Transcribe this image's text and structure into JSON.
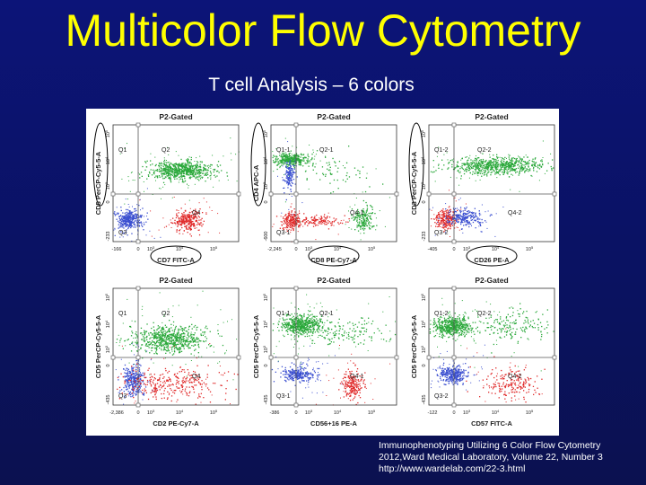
{
  "slide": {
    "title": "Multicolor Flow Cytometry",
    "subtitle": "T cell Analysis – 6 colors"
  },
  "colors": {
    "background": "#0c1478",
    "title": "#ffff00",
    "green_population": "#2aa83a",
    "blue_population": "#3b4fd0",
    "red_population": "#e02a2a",
    "gate_line": "#555555",
    "annotation_circle": "#000000"
  },
  "plots": [
    {
      "gate": "P2-Gated",
      "ylabel": "CD5 PerCP-Cy5-5-A",
      "xlabel": "CD7 FITC-A",
      "yticks": [
        "10^5",
        "10^4",
        "10^3",
        "0",
        "-233"
      ],
      "xticks": [
        "-166",
        "0",
        "10^3",
        "10^4",
        "10^5"
      ],
      "quadrants": [
        "Q1",
        "Q2",
        "Q3",
        "Q4"
      ],
      "ylabel_circled": true,
      "xlabel_circled": true
    },
    {
      "gate": "P2-Gated",
      "ylabel": "CD4 APC-A",
      "xlabel": "CD8 PE-Cy7-A",
      "yticks": [
        "10^5",
        "10^4",
        "10^3",
        "0",
        "-600"
      ],
      "xticks": [
        "-2,245",
        "0",
        "10^3",
        "10^4",
        "10^5"
      ],
      "quadrants": [
        "Q1-1",
        "Q2-1",
        "Q3-1",
        "Q4-1"
      ],
      "ylabel_circled": true,
      "xlabel_circled": true
    },
    {
      "gate": "P2-Gated",
      "ylabel": "CD3 PerCP-Cy5-5-A",
      "xlabel": "CD26 PE-A",
      "yticks": [
        "10^5",
        "10^4",
        "10^3",
        "0",
        "-233"
      ],
      "xticks": [
        "-405",
        "0",
        "10^3",
        "10^4",
        "10^5"
      ],
      "quadrants": [
        "Q1-2",
        "Q2-2",
        "Q3-2",
        "Q4-2"
      ],
      "ylabel_circled": true,
      "xlabel_circled": true
    },
    {
      "gate": "P2-Gated",
      "ylabel": "CD5 PerCP-Cy5-5-A",
      "xlabel": "CD2 PE-Cy7-A",
      "yticks": [
        "10^5",
        "10^4",
        "10^3",
        "0",
        "-435"
      ],
      "xticks": [
        "-2,386",
        "0",
        "10^3",
        "10^4",
        "10^5"
      ],
      "quadrants": [
        "Q1",
        "Q2",
        "Q3",
        "Q4"
      ],
      "ylabel_circled": false,
      "xlabel_circled": false
    },
    {
      "gate": "P2-Gated",
      "ylabel": "CD5 PerCP-Cy5-5-A",
      "xlabel": "CD56+16 PE-A",
      "yticks": [
        "10^5",
        "10^4",
        "10^3",
        "0",
        "-435"
      ],
      "xticks": [
        "-386",
        "0",
        "10^3",
        "10^4",
        "10^5"
      ],
      "quadrants": [
        "Q1-1",
        "Q2-1",
        "Q3-1",
        "Q4-1"
      ],
      "ylabel_circled": false,
      "xlabel_circled": false
    },
    {
      "gate": "P2-Gated",
      "ylabel": "CD5 PerCP-Cy5-5-A",
      "xlabel": "CD57 FITC-A",
      "yticks": [
        "10^5",
        "10^4",
        "10^3",
        "0",
        "-435"
      ],
      "xticks": [
        "-122",
        "0",
        "10^3",
        "10^4",
        "10^5"
      ],
      "quadrants": [
        "Q1-2",
        "Q2-2",
        "Q3-2",
        "Q4-2"
      ],
      "ylabel_circled": false,
      "xlabel_circled": false
    }
  ],
  "citation": {
    "line1": "Immunophenotyping Utilizing 6 Color Flow Cytometry",
    "line2": "2012,Ward Medical Laboratory, Volume 22, Number 3",
    "line3": "http://www.wardelab.com/22-3.html"
  }
}
